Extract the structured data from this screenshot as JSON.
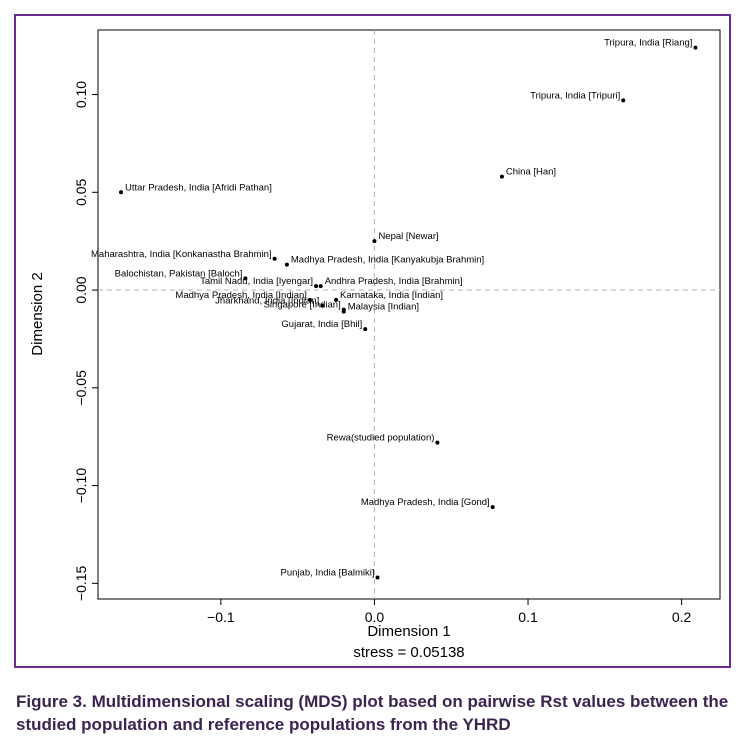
{
  "figure": {
    "caption": "Figure 3. Multidimensional scaling (MDS) plot based on pairwise Rst values between the studied population and reference populations from the YHRD",
    "stress_label": "stress = 0.05138",
    "frame_color": "#6b2d8b",
    "caption_color": "#3b2450"
  },
  "chart_data": {
    "type": "scatter",
    "xlabel": "Dimension 1",
    "ylabel": "Dimension 2",
    "xlim": [
      -0.18,
      0.225
    ],
    "ylim": [
      -0.158,
      0.133
    ],
    "x_ticks": [
      -0.1,
      0.0,
      0.1,
      0.2
    ],
    "x_tick_labels": [
      "−0.1",
      "0.0",
      "0.1",
      "0.2"
    ],
    "y_ticks": [
      -0.15,
      -0.1,
      -0.05,
      0.0,
      0.05,
      0.1
    ],
    "y_tick_labels": [
      "−0.15",
      "−0.10",
      "−0.05",
      "0.00",
      "0.05",
      "0.10"
    ],
    "reference_lines": {
      "x": 0,
      "y": 0,
      "style": "dashed"
    },
    "grid": false,
    "points": [
      {
        "label": "Tripura, India [Riang]",
        "x": 0.209,
        "y": 0.124,
        "anchor": "end"
      },
      {
        "label": "Tripura, India [Tripuri]",
        "x": 0.162,
        "y": 0.097,
        "anchor": "end"
      },
      {
        "label": "China [Han]",
        "x": 0.083,
        "y": 0.058,
        "anchor": "start"
      },
      {
        "label": "Uttar Pradesh, India [Afridi Pathan]",
        "x": -0.165,
        "y": 0.05,
        "anchor": "start"
      },
      {
        "label": "Nepal [Newar]",
        "x": 0.0,
        "y": 0.025,
        "anchor": "start"
      },
      {
        "label": "Maharashtra, India [Konkanastha Brahmin]",
        "x": -0.065,
        "y": 0.016,
        "anchor": "end"
      },
      {
        "label": "Madhya Pradesh, India [Kanyakubja Brahmin]",
        "x": -0.057,
        "y": 0.013,
        "anchor": "start"
      },
      {
        "label": "Balochistan, Pakistan [Baloch]",
        "x": -0.084,
        "y": 0.006,
        "anchor": "end"
      },
      {
        "label": "Tamil Nadu, India [Iyengar]",
        "x": -0.038,
        "y": 0.002,
        "anchor": "end"
      },
      {
        "label": "Andhra Pradesh, India [Brahmin]",
        "x": -0.035,
        "y": 0.002,
        "anchor": "start"
      },
      {
        "label": "Madhya Pradesh, India [Indian]",
        "x": -0.042,
        "y": -0.005,
        "anchor": "end"
      },
      {
        "label": "Karnataka, India [Indian]",
        "x": -0.025,
        "y": -0.005,
        "anchor": "start"
      },
      {
        "label": "Jharkhand, India [Indian]",
        "x": -0.034,
        "y": -0.008,
        "anchor": "end"
      },
      {
        "label": "Singapore [Indian]",
        "x": -0.02,
        "y": -0.01,
        "anchor": "end"
      },
      {
        "label": "Malaysia [Indian]",
        "x": -0.02,
        "y": -0.011,
        "anchor": "start"
      },
      {
        "label": "Gujarat, India [Bhil]",
        "x": -0.006,
        "y": -0.02,
        "anchor": "end"
      },
      {
        "label": "Rewa(studied population)",
        "x": 0.041,
        "y": -0.078,
        "anchor": "end"
      },
      {
        "label": "Madhya Pradesh, India [Gond]",
        "x": 0.077,
        "y": -0.111,
        "anchor": "end"
      },
      {
        "label": "Punjab, India [Balmiki]",
        "x": 0.002,
        "y": -0.147,
        "anchor": "end"
      }
    ]
  }
}
